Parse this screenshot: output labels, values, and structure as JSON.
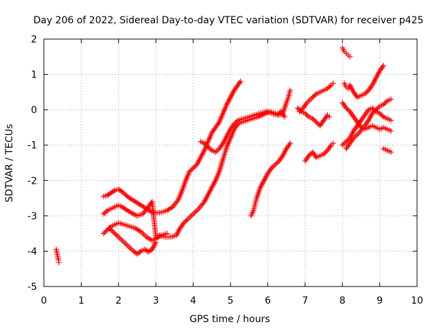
{
  "chart_data": {
    "type": "scatter",
    "title": "Day 206 of 2022, Sidereal Day-to-day VTEC variation (SDTVAR) for receiver p425",
    "xlabel": "GPS time / hours",
    "ylabel": "SDTVAR / TECUs",
    "xlim": [
      0,
      10
    ],
    "ylim": [
      -5,
      2
    ],
    "x_ticks": [
      "0",
      "1",
      "2",
      "3",
      "4",
      "5",
      "6",
      "7",
      "8",
      "9",
      "10"
    ],
    "y_ticks": [
      "-5",
      "-4",
      "-3",
      "-2",
      "-1",
      "0",
      "1",
      "2"
    ],
    "grid": true,
    "marker": "+",
    "color": "#ff0000",
    "series": [
      {
        "points": [
          [
            0.33,
            -3.95
          ],
          [
            0.35,
            -4.05
          ],
          [
            0.37,
            -4.15
          ],
          [
            0.39,
            -4.25
          ],
          [
            0.4,
            -4.32
          ]
        ]
      },
      {
        "points": [
          [
            1.6,
            -2.45
          ],
          [
            1.7,
            -2.42
          ],
          [
            1.8,
            -2.35
          ],
          [
            1.9,
            -2.28
          ],
          [
            2.0,
            -2.25
          ],
          [
            2.1,
            -2.32
          ],
          [
            2.2,
            -2.42
          ],
          [
            2.3,
            -2.5
          ],
          [
            2.45,
            -2.6
          ],
          [
            2.6,
            -2.7
          ],
          [
            2.75,
            -2.8
          ],
          [
            2.9,
            -2.9
          ],
          [
            3.0,
            -2.92
          ],
          [
            3.15,
            -2.9
          ],
          [
            3.3,
            -2.85
          ],
          [
            3.45,
            -2.75
          ],
          [
            3.6,
            -2.55
          ],
          [
            3.7,
            -2.3
          ],
          [
            3.8,
            -2.0
          ],
          [
            3.9,
            -1.75
          ],
          [
            4.0,
            -1.65
          ],
          [
            4.1,
            -1.55
          ],
          [
            4.2,
            -1.35
          ],
          [
            4.3,
            -1.15
          ],
          [
            4.4,
            -0.9
          ],
          [
            4.5,
            -0.65
          ],
          [
            4.6,
            -0.5
          ],
          [
            4.7,
            -0.35
          ],
          [
            4.8,
            -0.1
          ],
          [
            4.9,
            0.15
          ],
          [
            5.0,
            0.35
          ],
          [
            5.1,
            0.55
          ],
          [
            5.2,
            0.7
          ],
          [
            5.27,
            0.8
          ]
        ]
      },
      {
        "points": [
          [
            1.6,
            -2.95
          ],
          [
            1.7,
            -2.85
          ],
          [
            1.8,
            -2.8
          ],
          [
            1.9,
            -2.75
          ],
          [
            2.0,
            -2.7
          ],
          [
            2.1,
            -2.75
          ],
          [
            2.2,
            -2.82
          ],
          [
            2.35,
            -2.92
          ],
          [
            2.5,
            -3.0
          ],
          [
            2.65,
            -2.95
          ],
          [
            2.8,
            -2.75
          ],
          [
            2.9,
            -2.6
          ],
          [
            3.0,
            -3.6
          ],
          [
            3.1,
            -3.55
          ],
          [
            3.25,
            -3.6
          ],
          [
            3.4,
            -3.6
          ],
          [
            3.55,
            -3.55
          ],
          [
            3.65,
            -3.35
          ],
          [
            3.75,
            -3.2
          ],
          [
            3.85,
            -3.1
          ],
          [
            4.0,
            -2.95
          ],
          [
            4.15,
            -2.8
          ],
          [
            4.3,
            -2.6
          ],
          [
            4.4,
            -2.4
          ],
          [
            4.5,
            -2.2
          ],
          [
            4.6,
            -2.0
          ],
          [
            4.7,
            -1.75
          ],
          [
            4.8,
            -1.4
          ],
          [
            4.9,
            -1.05
          ],
          [
            5.0,
            -0.8
          ],
          [
            5.1,
            -0.55
          ],
          [
            5.2,
            -0.4
          ],
          [
            5.3,
            -0.35
          ],
          [
            5.45,
            -0.3
          ],
          [
            5.6,
            -0.25
          ],
          [
            5.75,
            -0.2
          ],
          [
            5.9,
            -0.12
          ],
          [
            6.05,
            -0.05
          ],
          [
            6.2,
            -0.1
          ],
          [
            6.3,
            -0.15
          ],
          [
            6.4,
            -0.1
          ],
          [
            6.5,
            0.2
          ],
          [
            6.55,
            0.35
          ],
          [
            6.6,
            0.55
          ]
        ]
      },
      {
        "points": [
          [
            1.6,
            -3.5
          ],
          [
            1.7,
            -3.4
          ],
          [
            1.8,
            -3.3
          ],
          [
            1.9,
            -3.25
          ],
          [
            2.0,
            -3.2
          ],
          [
            2.15,
            -3.25
          ],
          [
            2.3,
            -3.3
          ],
          [
            2.45,
            -3.35
          ],
          [
            2.6,
            -3.45
          ],
          [
            2.75,
            -3.6
          ],
          [
            2.9,
            -3.7
          ],
          [
            3.0,
            -3.65
          ],
          [
            3.15,
            -3.55
          ],
          [
            3.3,
            -3.5
          ]
        ]
      },
      {
        "points": [
          [
            1.75,
            -3.35
          ],
          [
            1.85,
            -3.45
          ],
          [
            1.95,
            -3.55
          ],
          [
            2.1,
            -3.7
          ],
          [
            2.25,
            -3.85
          ],
          [
            2.4,
            -4.0
          ],
          [
            2.5,
            -4.08
          ],
          [
            2.6,
            -4.0
          ],
          [
            2.7,
            -3.95
          ],
          [
            2.8,
            -4.02
          ],
          [
            2.9,
            -3.95
          ],
          [
            3.0,
            -3.75
          ]
        ]
      },
      {
        "points": [
          [
            4.2,
            -0.9
          ],
          [
            4.3,
            -0.95
          ],
          [
            4.4,
            -1.05
          ],
          [
            4.5,
            -1.15
          ],
          [
            4.6,
            -1.2
          ],
          [
            4.7,
            -1.1
          ],
          [
            4.8,
            -0.95
          ],
          [
            4.9,
            -0.75
          ],
          [
            5.0,
            -0.55
          ],
          [
            5.1,
            -0.4
          ],
          [
            5.2,
            -0.3
          ],
          [
            5.35,
            -0.25
          ],
          [
            5.5,
            -0.2
          ],
          [
            5.65,
            -0.15
          ],
          [
            5.8,
            -0.1
          ],
          [
            5.95,
            -0.05
          ],
          [
            6.1,
            -0.1
          ],
          [
            6.25,
            -0.15
          ],
          [
            6.35,
            -0.05
          ],
          [
            6.45,
            -0.2
          ]
        ]
      },
      {
        "points": [
          [
            5.55,
            -3.0
          ],
          [
            5.62,
            -2.85
          ],
          [
            5.7,
            -2.5
          ],
          [
            5.8,
            -2.2
          ],
          [
            5.9,
            -2.0
          ],
          [
            6.0,
            -1.8
          ],
          [
            6.1,
            -1.65
          ],
          [
            6.2,
            -1.55
          ],
          [
            6.3,
            -1.45
          ],
          [
            6.4,
            -1.3
          ],
          [
            6.5,
            -1.1
          ],
          [
            6.6,
            -0.95
          ]
        ]
      },
      {
        "points": [
          [
            6.8,
            0.05
          ],
          [
            6.9,
            -0.05
          ],
          [
            7.0,
            -0.1
          ],
          [
            7.1,
            -0.2
          ],
          [
            7.2,
            -0.25
          ],
          [
            7.3,
            -0.35
          ],
          [
            7.4,
            -0.45
          ],
          [
            7.5,
            -0.3
          ],
          [
            7.6,
            -0.15
          ],
          [
            7.65,
            -0.2
          ]
        ]
      },
      {
        "points": [
          [
            6.85,
            -0.05
          ],
          [
            6.95,
            0.05
          ],
          [
            7.05,
            0.2
          ],
          [
            7.2,
            0.35
          ],
          [
            7.3,
            0.45
          ],
          [
            7.4,
            0.5
          ],
          [
            7.5,
            0.55
          ],
          [
            7.6,
            0.6
          ],
          [
            7.7,
            0.7
          ],
          [
            7.75,
            0.75
          ]
        ]
      },
      {
        "points": [
          [
            7.0,
            -1.45
          ],
          [
            7.1,
            -1.3
          ],
          [
            7.2,
            -1.2
          ],
          [
            7.3,
            -1.35
          ],
          [
            7.4,
            -1.3
          ],
          [
            7.5,
            -1.25
          ],
          [
            7.6,
            -1.15
          ],
          [
            7.7,
            -1.0
          ],
          [
            7.75,
            -0.95
          ]
        ]
      },
      {
        "points": [
          [
            8.0,
            1.75
          ],
          [
            8.05,
            1.65
          ],
          [
            8.1,
            1.6
          ],
          [
            8.15,
            1.55
          ],
          [
            8.2,
            1.5
          ]
        ]
      },
      {
        "points": [
          [
            8.05,
            0.75
          ],
          [
            8.1,
            0.65
          ],
          [
            8.15,
            0.6
          ],
          [
            8.2,
            0.7
          ],
          [
            8.3,
            0.5
          ],
          [
            8.4,
            0.35
          ],
          [
            8.5,
            0.4
          ],
          [
            8.6,
            0.45
          ],
          [
            8.7,
            0.55
          ],
          [
            8.8,
            0.7
          ],
          [
            8.9,
            0.9
          ],
          [
            9.0,
            1.1
          ],
          [
            9.1,
            1.25
          ]
        ]
      },
      {
        "points": [
          [
            8.0,
            0.2
          ],
          [
            8.1,
            0.05
          ],
          [
            8.2,
            -0.05
          ],
          [
            8.3,
            -0.2
          ],
          [
            8.4,
            -0.35
          ],
          [
            8.5,
            -0.5
          ],
          [
            8.6,
            -0.55
          ],
          [
            8.7,
            -0.5
          ],
          [
            8.8,
            -0.45
          ],
          [
            8.9,
            -0.5
          ],
          [
            9.0,
            -0.55
          ],
          [
            9.1,
            -0.5
          ],
          [
            9.2,
            -0.55
          ],
          [
            9.3,
            -0.6
          ]
        ]
      },
      {
        "points": [
          [
            8.0,
            -1.0
          ],
          [
            8.1,
            -0.9
          ],
          [
            8.2,
            -0.8
          ],
          [
            8.3,
            -0.6
          ],
          [
            8.4,
            -0.45
          ],
          [
            8.5,
            -0.3
          ],
          [
            8.6,
            -0.15
          ],
          [
            8.7,
            0.0
          ],
          [
            8.8,
            0.05
          ],
          [
            8.9,
            -0.05
          ],
          [
            9.0,
            -0.1
          ],
          [
            9.1,
            -0.2
          ],
          [
            9.2,
            -0.25
          ],
          [
            9.3,
            -0.3
          ]
        ]
      },
      {
        "points": [
          [
            8.1,
            -1.1
          ],
          [
            8.2,
            -0.95
          ],
          [
            8.3,
            -0.8
          ],
          [
            8.45,
            -0.65
          ],
          [
            8.6,
            -0.45
          ],
          [
            8.7,
            -0.3
          ],
          [
            8.8,
            -0.1
          ],
          [
            8.9,
            0.0
          ],
          [
            9.0,
            0.1
          ],
          [
            9.1,
            0.15
          ],
          [
            9.2,
            0.25
          ],
          [
            9.3,
            0.3
          ]
        ]
      },
      {
        "points": [
          [
            9.1,
            -1.1
          ],
          [
            9.15,
            -1.12
          ],
          [
            9.2,
            -1.15
          ],
          [
            9.25,
            -1.17
          ],
          [
            9.3,
            -1.2
          ]
        ]
      }
    ]
  }
}
